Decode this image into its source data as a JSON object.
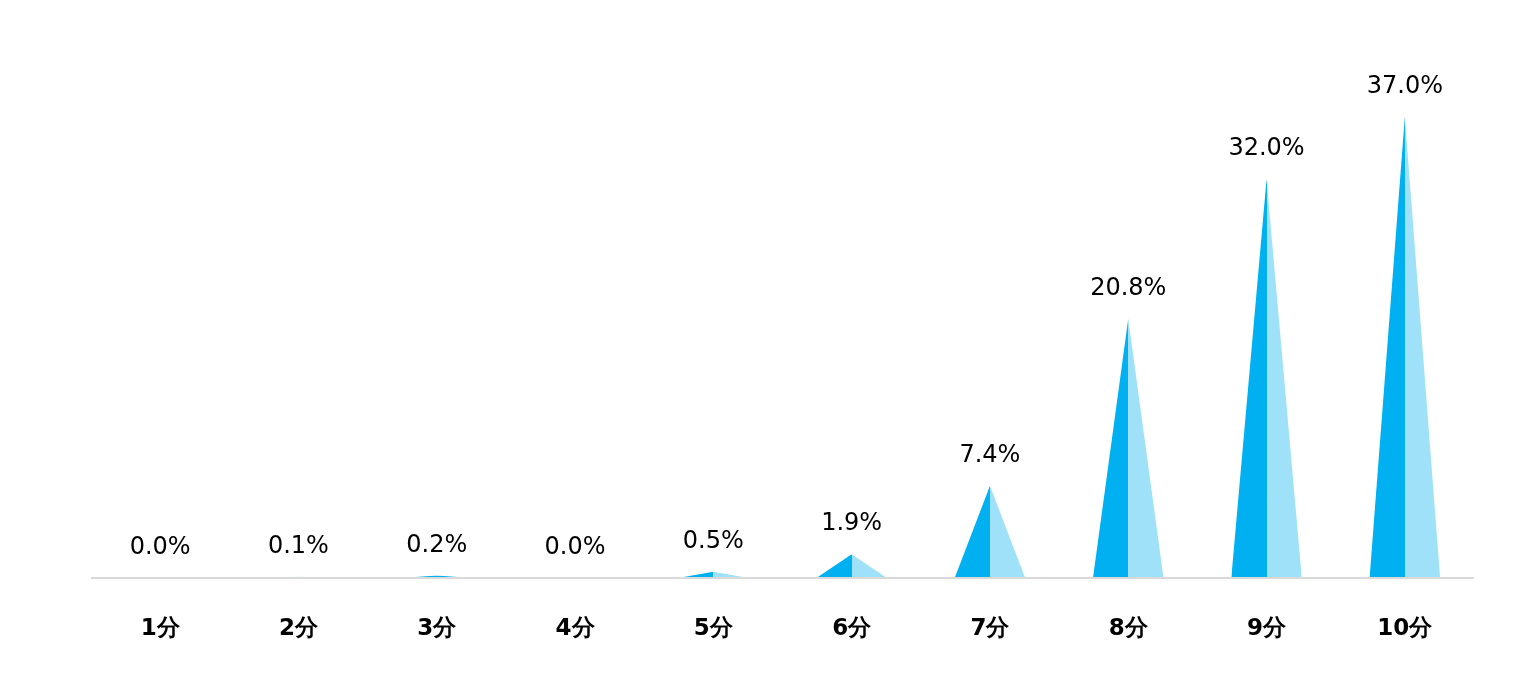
{
  "chart_data": {
    "type": "bar",
    "categories": [
      "1分",
      "2分",
      "3分",
      "4分",
      "5分",
      "6分",
      "7分",
      "8分",
      "9分",
      "10分"
    ],
    "series": [
      {
        "color": "#00b0f0",
        "values": [
          0.0,
          0.1,
          0.2,
          0.0,
          0.5,
          1.9,
          7.4,
          20.8,
          32.0,
          37.0
        ],
        "value_labels": [
          "0.0%",
          "0.1%",
          "0.2%",
          "0.0%",
          "0.5%",
          "1.9%",
          "7.4%",
          "20.8%",
          "32.0%",
          "37.0%"
        ]
      }
    ],
    "data_labels": true
  }
}
